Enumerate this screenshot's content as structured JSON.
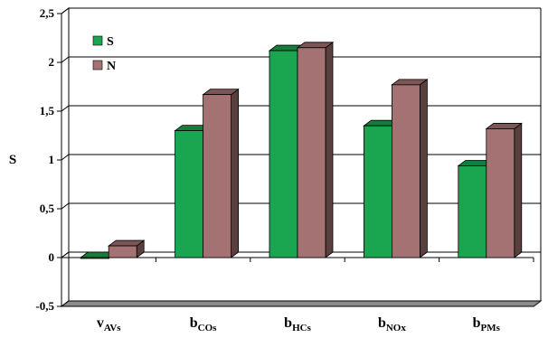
{
  "chart_data": {
    "type": "bar",
    "title": "",
    "xlabel": "",
    "ylabel": "S",
    "ylim": [
      -0.5,
      2.5
    ],
    "yticks": [
      "-0,5",
      "0",
      "0,5",
      "1",
      "1,5",
      "2",
      "2,5"
    ],
    "ytick_values": [
      -0.5,
      0,
      0.5,
      1,
      1.5,
      2,
      2.5
    ],
    "grid": true,
    "legend_position": "top-left",
    "categories": [
      {
        "base": "v",
        "sub": "AVs"
      },
      {
        "base": "b",
        "sub": "COs"
      },
      {
        "base": "b",
        "sub": "HCs"
      },
      {
        "base": "b",
        "sub": "NOx"
      },
      {
        "base": "b",
        "sub": "PMs"
      }
    ],
    "series": [
      {
        "name": "S",
        "color": "#1aa650",
        "values": [
          0.0,
          1.3,
          2.12,
          1.35,
          0.94
        ]
      },
      {
        "name": "N",
        "color": "#a47272",
        "values": [
          0.12,
          1.67,
          2.15,
          1.77,
          1.32
        ]
      }
    ]
  }
}
